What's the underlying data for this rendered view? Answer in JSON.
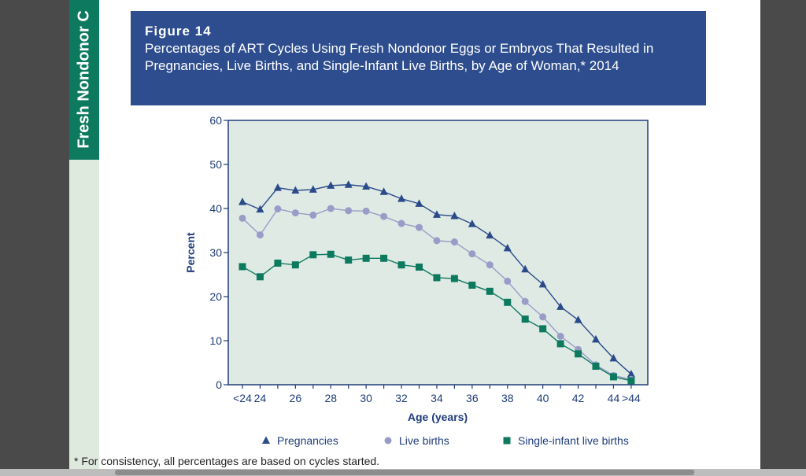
{
  "side_tab": {
    "label": "Fresh Nondonor C"
  },
  "figure": {
    "label": "Figure 14",
    "title": "Percentages of ART Cycles Using Fresh Nondonor Eggs or Embryos That Resulted in Pregnancies, Live Births, and Single-Infant Live Births, by Age of Woman,* 2014"
  },
  "footnote": "* For consistency, all percentages are based on cycles started.",
  "colors": {
    "header_bg": "#2e4d8e",
    "plot_bg": "#dfeae4",
    "axis": "#1f3c7a",
    "pregnancies": "#2a4a8a",
    "live_births": "#9a9cc8",
    "single_infant": "#0d7a60",
    "side_tab": "#0d7a60"
  },
  "chart_data": {
    "type": "line",
    "title": "",
    "xlabel": "Age (years)",
    "ylabel": "Percent",
    "ylim": [
      0,
      60
    ],
    "yticks": [
      0,
      10,
      20,
      30,
      40,
      50,
      60
    ],
    "x": [
      "<24",
      "24",
      "25",
      "26",
      "27",
      "28",
      "29",
      "30",
      "31",
      "32",
      "33",
      "34",
      "35",
      "36",
      "37",
      "38",
      "39",
      "40",
      "41",
      "42",
      "43",
      "44",
      ">44"
    ],
    "xtick_labels": [
      "<24",
      "24",
      "",
      "26",
      "",
      "28",
      "",
      "30",
      "",
      "32",
      "",
      "34",
      "",
      "36",
      "",
      "38",
      "",
      "40",
      "",
      "42",
      "",
      "44",
      ">44"
    ],
    "grid": false,
    "legend_position": "bottom",
    "series": [
      {
        "name": "Pregnancies",
        "marker": "triangle",
        "values": [
          41.5,
          39.8,
          44.7,
          44.1,
          44.3,
          45.2,
          45.4,
          45.0,
          43.8,
          42.2,
          41.1,
          38.6,
          38.3,
          36.5,
          33.9,
          31.0,
          26.2,
          22.8,
          17.7,
          14.7,
          10.3,
          6.0,
          2.4
        ]
      },
      {
        "name": "Live births",
        "marker": "circle",
        "values": [
          37.8,
          34.0,
          39.9,
          39.0,
          38.5,
          40.0,
          39.5,
          39.4,
          38.2,
          36.6,
          35.7,
          32.7,
          32.4,
          29.7,
          27.2,
          23.5,
          18.9,
          15.4,
          11.0,
          8.0,
          4.5,
          2.1,
          1.2
        ]
      },
      {
        "name": "Single-infant live births",
        "marker": "square",
        "values": [
          26.8,
          24.5,
          27.6,
          27.2,
          29.5,
          29.6,
          28.3,
          28.7,
          28.7,
          27.2,
          26.7,
          24.3,
          24.1,
          22.6,
          21.2,
          18.7,
          14.9,
          12.7,
          9.3,
          7.0,
          4.2,
          1.8,
          0.9
        ]
      }
    ]
  }
}
